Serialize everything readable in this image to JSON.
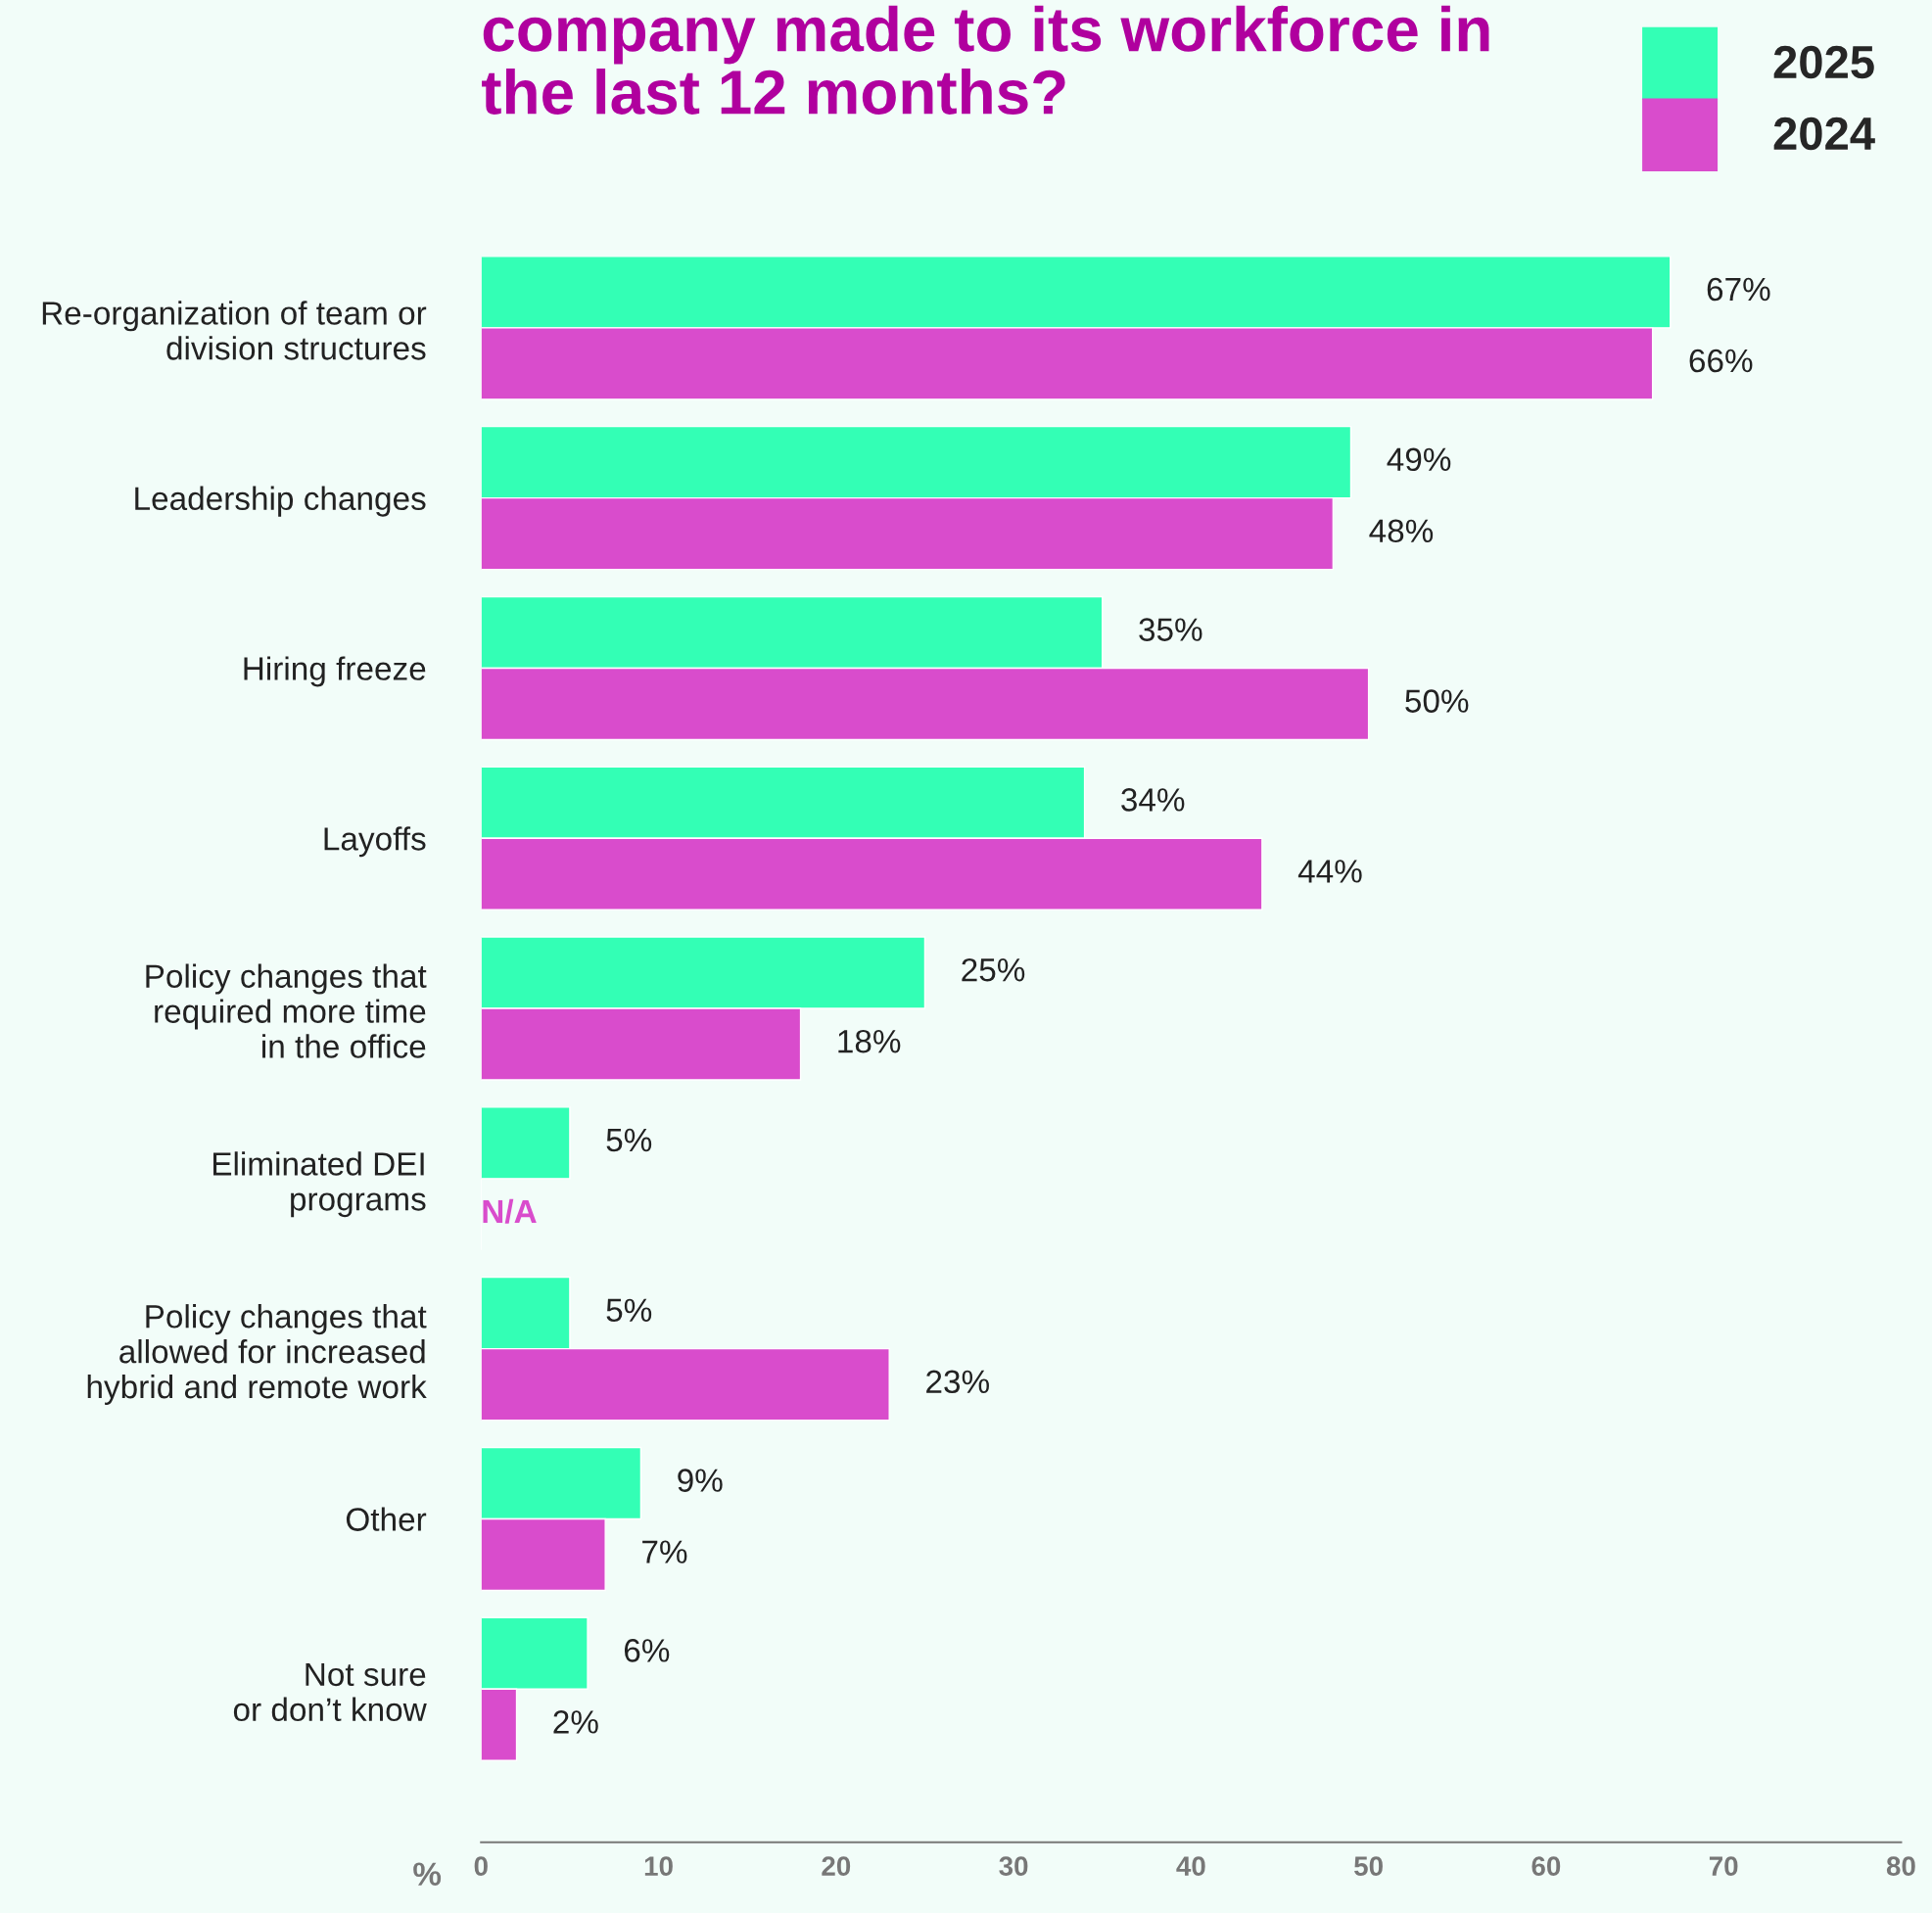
{
  "chart_data": {
    "type": "bar",
    "orientation": "horizontal",
    "title": "company made to its workforce in\nthe last 12 months?",
    "categories": [
      "Re-organization of team or\ndivision structures",
      "Leadership changes",
      "Hiring freeze",
      "Layoffs",
      "Policy changes that\nrequired more time\nin the office",
      "Eliminated DEI\nprograms",
      "Policy changes that\nallowed for increased\nhybrid and remote work",
      "Other",
      "Not sure\nor don’t know"
    ],
    "series": [
      {
        "name": "2025",
        "color": "#33ffb5",
        "values": [
          67,
          49,
          35,
          34,
          25,
          5,
          5,
          9,
          6
        ],
        "value_labels": [
          "67%",
          "49%",
          "35%",
          "34%",
          "25%",
          "5%",
          "5%",
          "9%",
          "6%"
        ]
      },
      {
        "name": "2024",
        "color": "#d94ccc",
        "values": [
          66,
          48,
          50,
          44,
          18,
          null,
          23,
          7,
          2
        ],
        "value_labels": [
          "66%",
          "48%",
          "50%",
          "44%",
          "18%",
          "N/A",
          "23%",
          "7%",
          "2%"
        ]
      }
    ],
    "xlabel": "%",
    "xlim": [
      0,
      80
    ],
    "xticks": [
      0,
      10,
      20,
      30,
      40,
      50,
      60,
      70,
      80
    ],
    "grid": false,
    "legend": "top right"
  }
}
